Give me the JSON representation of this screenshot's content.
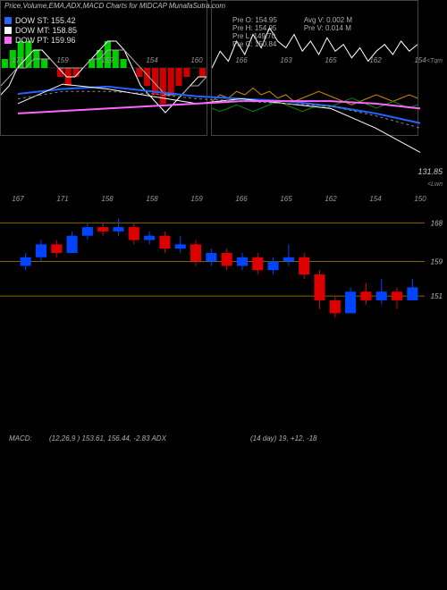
{
  "title": "Price,Volume,EMA,ADX,MACD Charts for MIDCAP MunafaSutra.com",
  "legend": [
    {
      "label": "DOW ST: 155.42",
      "color": "#2266ff"
    },
    {
      "label": "DOW MT: 158.85",
      "color": "#ffffff"
    },
    {
      "label": "DOW PT: 159.96",
      "color": "#ff66ff"
    }
  ],
  "info_left": [
    "Pre  O: 154.95",
    "Pre  H: 154.95",
    "Pre  L: 149.70",
    "Pre  C: 150.84"
  ],
  "info_right": [
    "Avg V: 0.002  M",
    "Pre  V: 0.014  M"
  ],
  "top_chart": {
    "type": "line",
    "xlabels": [
      "171",
      "159",
      "159",
      "154",
      "160",
      "166",
      "163",
      "165",
      "162",
      "154"
    ],
    "ymin": 131,
    "ymax": 175,
    "y_end_label": "131.85",
    "top_right_label": "<Tqm",
    "bot_right_label": "<Lwn",
    "series": [
      {
        "color": "#2266ff",
        "width": 2,
        "values": [
          164,
          166,
          167,
          165,
          163,
          162,
          161,
          159,
          156,
          152
        ]
      },
      {
        "color": "#ffffff",
        "width": 1,
        "values": [
          160,
          168,
          166,
          163,
          160,
          162,
          160,
          158,
          150,
          140
        ]
      },
      {
        "color": "#ff66ff",
        "width": 2,
        "values": [
          156,
          157,
          158,
          159,
          160,
          161,
          161,
          161,
          160,
          158
        ]
      },
      {
        "color": "#888888",
        "width": 1,
        "dash": true,
        "values": [
          162,
          165,
          165,
          164,
          162,
          161,
          160,
          159,
          155,
          150
        ]
      }
    ]
  },
  "price_chart": {
    "type": "candle",
    "ymin": 145,
    "ymax": 172,
    "xlabels": [
      "167",
      "171",
      "158",
      "158",
      "159",
      "166",
      "165",
      "162",
      "154",
      "150"
    ],
    "hlines": [
      168,
      159,
      151
    ],
    "hline_color": "#aa8800",
    "candles": [
      {
        "o": 158,
        "c": 160,
        "h": 161,
        "l": 157,
        "color": "#0044ff"
      },
      {
        "o": 160,
        "c": 163,
        "h": 164,
        "l": 159,
        "color": "#0044ff"
      },
      {
        "o": 163,
        "c": 161,
        "h": 164,
        "l": 160,
        "color": "#dd0000"
      },
      {
        "o": 161,
        "c": 165,
        "h": 166,
        "l": 161,
        "color": "#0044ff"
      },
      {
        "o": 165,
        "c": 167,
        "h": 168,
        "l": 164,
        "color": "#0044ff"
      },
      {
        "o": 167,
        "c": 166,
        "h": 168,
        "l": 165,
        "color": "#dd0000"
      },
      {
        "o": 166,
        "c": 167,
        "h": 169,
        "l": 165,
        "color": "#0044ff"
      },
      {
        "o": 167,
        "c": 164,
        "h": 168,
        "l": 163,
        "color": "#dd0000"
      },
      {
        "o": 164,
        "c": 165,
        "h": 166,
        "l": 163,
        "color": "#0044ff"
      },
      {
        "o": 165,
        "c": 162,
        "h": 166,
        "l": 161,
        "color": "#dd0000"
      },
      {
        "o": 162,
        "c": 163,
        "h": 165,
        "l": 161,
        "color": "#0044ff"
      },
      {
        "o": 163,
        "c": 159,
        "h": 164,
        "l": 158,
        "color": "#dd0000"
      },
      {
        "o": 159,
        "c": 161,
        "h": 162,
        "l": 158,
        "color": "#0044ff"
      },
      {
        "o": 161,
        "c": 158,
        "h": 162,
        "l": 157,
        "color": "#dd0000"
      },
      {
        "o": 158,
        "c": 160,
        "h": 161,
        "l": 157,
        "color": "#0044ff"
      },
      {
        "o": 160,
        "c": 157,
        "h": 161,
        "l": 156,
        "color": "#dd0000"
      },
      {
        "o": 157,
        "c": 159,
        "h": 160,
        "l": 156,
        "color": "#0044ff"
      },
      {
        "o": 159,
        "c": 160,
        "h": 163,
        "l": 158,
        "color": "#0044ff"
      },
      {
        "o": 160,
        "c": 156,
        "h": 161,
        "l": 155,
        "color": "#dd0000"
      },
      {
        "o": 156,
        "c": 150,
        "h": 157,
        "l": 148,
        "color": "#dd0000"
      },
      {
        "o": 150,
        "c": 147,
        "h": 151,
        "l": 146,
        "color": "#dd0000"
      },
      {
        "o": 147,
        "c": 152,
        "h": 153,
        "l": 147,
        "color": "#0044ff"
      },
      {
        "o": 152,
        "c": 150,
        "h": 154,
        "l": 149,
        "color": "#dd0000"
      },
      {
        "o": 150,
        "c": 152,
        "h": 155,
        "l": 149,
        "color": "#0044ff"
      },
      {
        "o": 152,
        "c": 150,
        "h": 153,
        "l": 148,
        "color": "#dd0000"
      },
      {
        "o": 150,
        "c": 153,
        "h": 155,
        "l": 150,
        "color": "#0044ff"
      }
    ]
  },
  "macd": {
    "label": "MACD:",
    "params": "(12,26,9 ) 153.61,  156.44,  -2.83 ADX",
    "type": "macd",
    "ymin": -6,
    "ymax": 6,
    "hist": [
      1,
      2,
      3,
      3,
      2,
      1,
      0,
      -1,
      -2,
      -1,
      0,
      1,
      2,
      3,
      2,
      1,
      0,
      -1,
      -2,
      -3,
      -4,
      -3,
      -2,
      -1,
      0,
      -1
    ],
    "hist_pos_color": "#00cc00",
    "hist_neg_color": "#cc0000",
    "lines": [
      {
        "color": "#ffffff",
        "values": [
          -3,
          -2,
          0,
          1,
          2,
          2,
          1,
          0,
          -1,
          -1,
          0,
          1,
          2,
          3,
          3,
          2,
          0,
          -2,
          -3,
          -4,
          -5,
          -4,
          -3,
          -2,
          -1,
          -1
        ]
      },
      {
        "color": "#aaaaaa",
        "values": [
          -2,
          -1,
          0,
          0,
          1,
          1,
          1,
          0,
          0,
          0,
          0,
          1,
          1,
          2,
          2,
          2,
          1,
          0,
          -1,
          -2,
          -3,
          -3,
          -3,
          -2,
          -2,
          -1
        ]
      }
    ]
  },
  "adx": {
    "label": "(14   day) 19,  +12,  -18",
    "type": "line",
    "ymin": 0,
    "ymax": 40,
    "lines": [
      {
        "color": "#ffffff",
        "values": [
          20,
          25,
          22,
          28,
          24,
          30,
          26,
          32,
          28,
          26,
          30,
          25,
          28,
          24,
          29,
          25,
          27,
          23,
          26,
          22,
          25,
          27,
          24,
          28,
          25,
          27
        ]
      },
      {
        "color": "#cc8800",
        "values": [
          10,
          12,
          11,
          13,
          12,
          14,
          12,
          13,
          11,
          12,
          10,
          11,
          12,
          13,
          12,
          11,
          10,
          9,
          10,
          11,
          12,
          11,
          10,
          11,
          12,
          11
        ]
      },
      {
        "color": "#008800",
        "values": [
          8,
          7,
          8,
          9,
          8,
          7,
          8,
          9,
          10,
          9,
          8,
          7,
          8,
          9,
          8,
          9,
          10,
          11,
          10,
          9,
          8,
          9,
          10,
          9,
          8,
          9
        ]
      }
    ]
  }
}
